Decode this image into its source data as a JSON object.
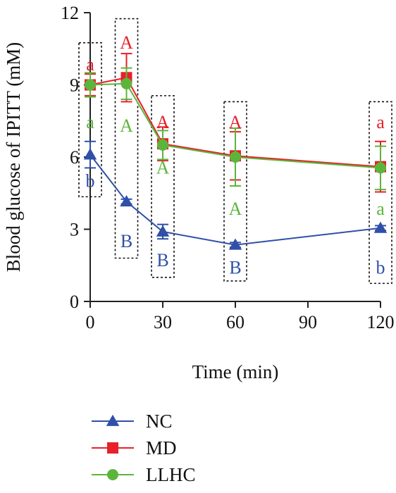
{
  "chart_data": {
    "type": "line",
    "xlabel": "Time (min)",
    "ylabel": "Blood glucose of IPITT (mM)",
    "xlim": [
      0,
      120
    ],
    "ylim": [
      0,
      12
    ],
    "xticks": [
      0,
      30,
      60,
      90,
      120
    ],
    "yticks": [
      0,
      3,
      6,
      9,
      12
    ],
    "grid": false,
    "legend_position": "bottom-left",
    "series": [
      {
        "name": "MD",
        "marker": "square",
        "color": "#e8202a",
        "x": [
          0,
          15,
          30,
          60,
          120
        ],
        "values": [
          9.0,
          9.3,
          6.55,
          6.05,
          5.6
        ],
        "err": [
          0.45,
          1.0,
          0.7,
          1.0,
          1.05
        ]
      },
      {
        "name": "LLHC",
        "marker": "circle",
        "color": "#5cb53b",
        "x": [
          0,
          15,
          30,
          60,
          120
        ],
        "values": [
          9.0,
          9.05,
          6.5,
          6.0,
          5.55
        ],
        "err": [
          0.5,
          0.65,
          0.6,
          1.2,
          0.9
        ]
      },
      {
        "name": "NC",
        "marker": "triangle",
        "color": "#2f4fa8",
        "x": [
          0,
          15,
          30,
          60,
          120
        ],
        "values": [
          6.1,
          4.15,
          2.9,
          2.35,
          3.05
        ],
        "err": [
          0.55,
          0.1,
          0.3,
          0.1,
          0.1
        ]
      }
    ],
    "annotations": [
      {
        "x": 0,
        "y1": 4.35,
        "y2": 10.75,
        "letters": [
          {
            "text": "a",
            "color": "#e8202a",
            "y": 9.9
          },
          {
            "text": "a",
            "color": "#5cb53b",
            "y": 7.5
          },
          {
            "text": "b",
            "color": "#2f4fa8",
            "y": 5.05
          }
        ]
      },
      {
        "x": 15,
        "y1": 1.8,
        "y2": 11.75,
        "letters": [
          {
            "text": "A",
            "color": "#e8202a",
            "y": 10.8
          },
          {
            "text": "A",
            "color": "#5cb53b",
            "y": 7.35
          },
          {
            "text": "B",
            "color": "#2f4fa8",
            "y": 2.55
          }
        ]
      },
      {
        "x": 30,
        "y1": 1.0,
        "y2": 8.55,
        "letters": [
          {
            "text": "A",
            "color": "#e8202a",
            "y": 7.5
          },
          {
            "text": "A",
            "color": "#5cb53b",
            "y": 5.6
          },
          {
            "text": "B",
            "color": "#2f4fa8",
            "y": 1.75
          }
        ]
      },
      {
        "x": 60,
        "y1": 0.85,
        "y2": 8.3,
        "letters": [
          {
            "text": "A",
            "color": "#e8202a",
            "y": 7.5
          },
          {
            "text": "A",
            "color": "#5cb53b",
            "y": 3.9
          },
          {
            "text": "B",
            "color": "#2f4fa8",
            "y": 1.45
          }
        ]
      },
      {
        "x": 120,
        "y1": 0.75,
        "y2": 8.3,
        "letters": [
          {
            "text": "a",
            "color": "#e8202a",
            "y": 7.5
          },
          {
            "text": "a",
            "color": "#5cb53b",
            "y": 3.9
          },
          {
            "text": "b",
            "color": "#2f4fa8",
            "y": 1.45
          }
        ]
      }
    ],
    "legend": [
      {
        "name": "NC",
        "marker": "triangle",
        "color": "#2f4fa8"
      },
      {
        "name": "MD",
        "marker": "square",
        "color": "#e8202a"
      },
      {
        "name": "LLHC",
        "marker": "circle",
        "color": "#5cb53b"
      }
    ]
  }
}
